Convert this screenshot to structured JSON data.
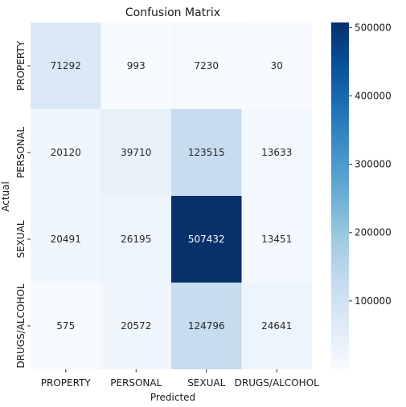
{
  "chart_data": {
    "type": "heatmap",
    "title": "Confusion Matrix",
    "xlabel": "Predicted",
    "ylabel": "Actual",
    "x_categories": [
      "PROPERTY",
      "PERSONAL",
      "SEXUAL",
      "DRUGS/ALCOHOL"
    ],
    "y_categories": [
      "PROPERTY",
      "PERSONAL",
      "SEXUAL",
      "DRUGS/ALCOHOL"
    ],
    "values": [
      [
        71292,
        993,
        7230,
        30
      ],
      [
        20120,
        39710,
        123515,
        13633
      ],
      [
        20491,
        26195,
        507432,
        13451
      ],
      [
        575,
        20572,
        124796,
        24641
      ]
    ],
    "colormap": "Blues",
    "colorbar": {
      "vmin": 30,
      "vmax": 507432,
      "ticks": [
        100000,
        200000,
        300000,
        400000,
        500000
      ],
      "tick_labels": [
        "100000",
        "200000",
        "300000",
        "400000",
        "500000"
      ]
    }
  }
}
